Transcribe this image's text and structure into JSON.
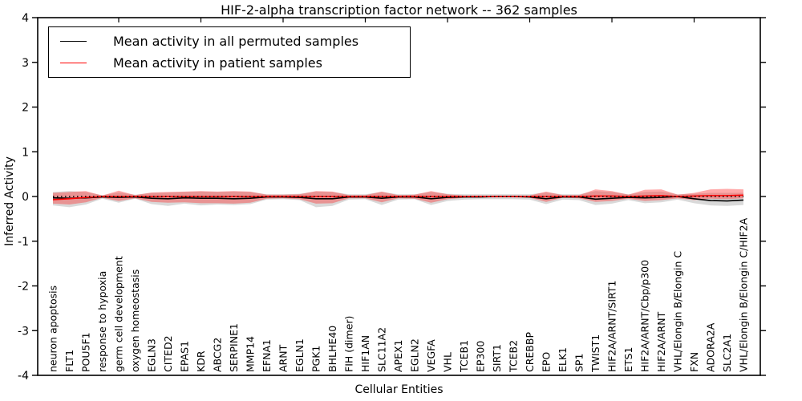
{
  "figure": {
    "title": "HIF-2-alpha transcription factor network -- 362 samples",
    "xlabel": "Cellular Entities",
    "ylabel": "Inferred Activity"
  },
  "legend": {
    "items": [
      {
        "label": "Mean activity in all permuted samples",
        "color": "#000000"
      },
      {
        "label": "Mean activity in patient samples",
        "color": "#ff0000"
      }
    ]
  },
  "colors": {
    "permuted_line": "#000000",
    "patient_line": "#ff0000",
    "permuted_band": "#aaaaaa",
    "patient_band": "#ff2a2a",
    "zero_line": "#000000",
    "spine": "#000000"
  },
  "chart_data": {
    "type": "line",
    "title": "HIF-2-alpha transcription factor network -- 362 samples",
    "xlabel": "Cellular Entities",
    "ylabel": "Inferred Activity",
    "ylim": [
      -4,
      4
    ],
    "yticks": [
      4,
      3,
      2,
      1,
      0,
      -1,
      -2,
      -3,
      -4
    ],
    "grid": false,
    "legend_position": "upper left",
    "categories": [
      "neuron apoptosis",
      "FLT1",
      "POU5F1",
      "response to hypoxia",
      "germ cell development",
      "oxygen homeostasis",
      "EGLN3",
      "CITED2",
      "EPAS1",
      "KDR",
      "ABCG2",
      "SERPINE1",
      "MMP14",
      "EFNA1",
      "ARNT",
      "EGLN1",
      "PGK1",
      "BHLHE40",
      "FIH (dimer)",
      "HIF1AN",
      "SLC11A2",
      "APEX1",
      "EGLN2",
      "VEGFA",
      "VHL",
      "TCEB1",
      "EP300",
      "SIRT1",
      "TCEB2",
      "CREBBP",
      "EPO",
      "ELK1",
      "SP1",
      "TWIST1",
      "HIF2A/ARNT/SIRT1",
      "ETS1",
      "HIF2A/ARNT/Cbp/p300",
      "HIF2A/ARNT",
      "VHL/Elongin B/Elongin C",
      "FXN",
      "ADORA2A",
      "SLC2A1",
      "VHL/Elongin B/Elongin C/HIF2A"
    ],
    "series": [
      {
        "name": "Mean activity in all permuted samples",
        "values": [
          -0.03,
          -0.04,
          -0.03,
          -0.01,
          -0.02,
          -0.01,
          -0.04,
          -0.05,
          -0.03,
          -0.04,
          -0.04,
          -0.05,
          -0.04,
          -0.01,
          -0.01,
          -0.02,
          -0.05,
          -0.05,
          -0.01,
          -0.01,
          -0.04,
          -0.01,
          -0.01,
          -0.05,
          -0.02,
          -0.01,
          -0.01,
          0.0,
          0.0,
          -0.01,
          -0.05,
          -0.01,
          -0.01,
          -0.06,
          -0.04,
          -0.02,
          -0.03,
          -0.02,
          0.0,
          -0.05,
          -0.09,
          -0.1,
          -0.08
        ]
      },
      {
        "name": "Mean activity in patient samples",
        "values": [
          -0.07,
          -0.05,
          -0.02,
          0.0,
          0.0,
          0.0,
          0.0,
          0.0,
          0.0,
          0.0,
          0.0,
          0.0,
          0.0,
          0.0,
          0.0,
          0.0,
          0.0,
          0.0,
          0.0,
          0.0,
          0.0,
          0.0,
          0.0,
          0.0,
          0.0,
          0.0,
          0.0,
          0.0,
          0.0,
          0.0,
          0.0,
          0.0,
          0.0,
          0.01,
          0.01,
          0.0,
          0.01,
          0.02,
          0.0,
          0.01,
          0.02,
          0.02,
          0.03
        ]
      }
    ],
    "bands": [
      {
        "name": "permuted std band",
        "upper": [
          0.1,
          0.12,
          0.1,
          0.03,
          0.09,
          0.04,
          0.08,
          0.09,
          0.1,
          0.11,
          0.1,
          0.11,
          0.1,
          0.05,
          0.05,
          0.06,
          0.11,
          0.1,
          0.05,
          0.05,
          0.1,
          0.05,
          0.05,
          0.1,
          0.06,
          0.05,
          0.05,
          0.05,
          0.05,
          0.05,
          0.09,
          0.05,
          0.05,
          0.12,
          0.1,
          0.05,
          0.1,
          0.11,
          0.05,
          0.06,
          0.08,
          0.08,
          0.08
        ],
        "lower": [
          -0.2,
          -0.24,
          -0.18,
          -0.05,
          -0.14,
          -0.05,
          -0.17,
          -0.21,
          -0.16,
          -0.2,
          -0.18,
          -0.19,
          -0.17,
          -0.07,
          -0.06,
          -0.08,
          -0.24,
          -0.21,
          -0.07,
          -0.06,
          -0.19,
          -0.07,
          -0.06,
          -0.19,
          -0.1,
          -0.07,
          -0.06,
          -0.06,
          -0.06,
          -0.07,
          -0.17,
          -0.07,
          -0.08,
          -0.19,
          -0.16,
          -0.08,
          -0.15,
          -0.13,
          -0.07,
          -0.15,
          -0.2,
          -0.21,
          -0.19
        ]
      },
      {
        "name": "patient std band",
        "upper": [
          0.08,
          0.1,
          0.12,
          0.02,
          0.13,
          0.03,
          0.09,
          0.1,
          0.11,
          0.12,
          0.11,
          0.12,
          0.11,
          0.04,
          0.04,
          0.05,
          0.12,
          0.11,
          0.03,
          0.03,
          0.11,
          0.03,
          0.04,
          0.12,
          0.05,
          0.02,
          0.02,
          0.02,
          0.02,
          0.02,
          0.11,
          0.03,
          0.03,
          0.16,
          0.12,
          0.04,
          0.15,
          0.16,
          0.04,
          0.08,
          0.16,
          0.17,
          0.16
        ],
        "lower": [
          -0.16,
          -0.18,
          -0.13,
          -0.03,
          -0.1,
          -0.04,
          -0.12,
          -0.14,
          -0.13,
          -0.15,
          -0.15,
          -0.16,
          -0.14,
          -0.05,
          -0.04,
          -0.06,
          -0.16,
          -0.15,
          -0.04,
          -0.04,
          -0.13,
          -0.04,
          -0.05,
          -0.14,
          -0.06,
          -0.03,
          -0.02,
          -0.02,
          -0.02,
          -0.03,
          -0.12,
          -0.03,
          -0.04,
          -0.12,
          -0.1,
          -0.05,
          -0.1,
          -0.08,
          -0.04,
          -0.08,
          -0.05,
          -0.06,
          -0.04
        ]
      }
    ],
    "zero_reference_line": 0
  },
  "layout_values": {
    "top_tick_every": 5
  }
}
